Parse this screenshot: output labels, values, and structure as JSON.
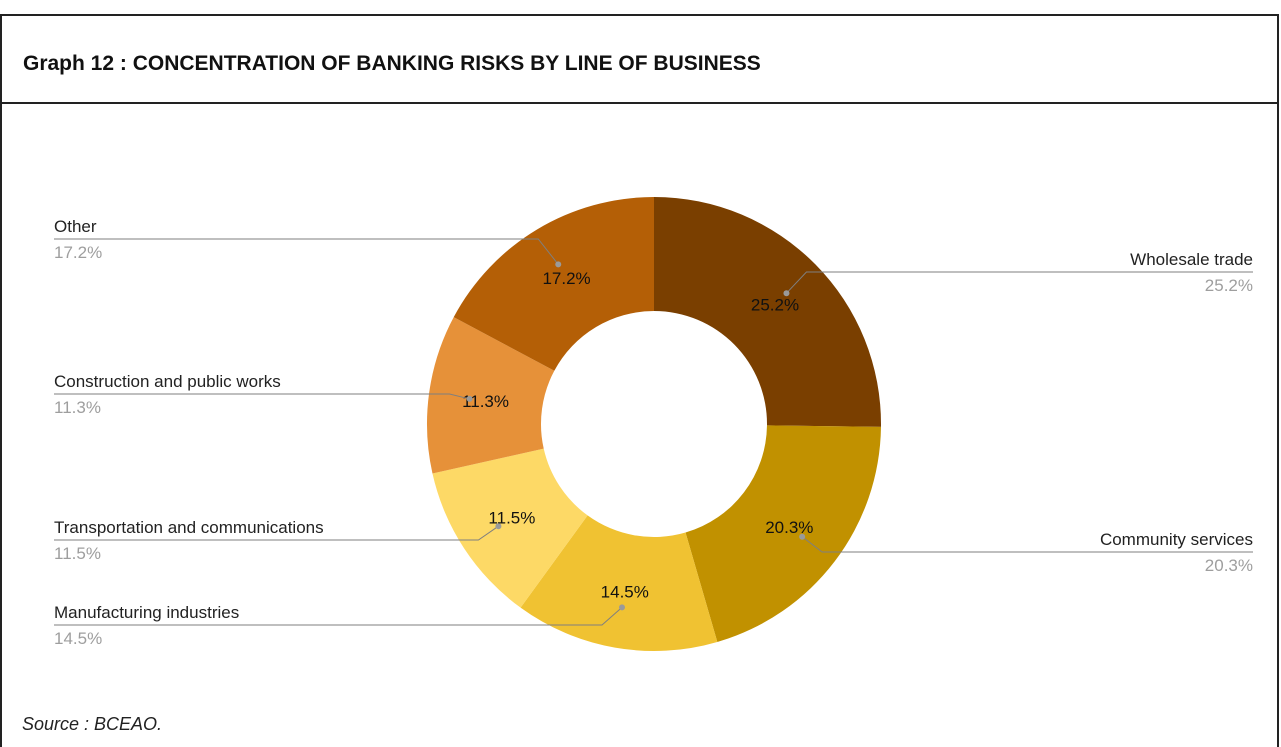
{
  "title": "Graph 12 : CONCENTRATION OF BANKING RISKS BY LINE OF BUSINESS",
  "source": "Source : BCEAO.",
  "chart_data": {
    "type": "pie",
    "donut": true,
    "slices": [
      {
        "label": "Wholesale trade",
        "value": 25.2,
        "pct_label": "25.2%",
        "color": "#7a3f00"
      },
      {
        "label": "Community services",
        "value": 20.3,
        "pct_label": "20.3%",
        "color": "#c19100"
      },
      {
        "label": "Manufacturing industries",
        "value": 14.5,
        "pct_label": "14.5%",
        "color": "#f0c232"
      },
      {
        "label": "Transportation and communications",
        "value": 11.5,
        "pct_label": "11.5%",
        "color": "#fdd966"
      },
      {
        "label": "Construction and public works",
        "value": 11.3,
        "pct_label": "11.3%",
        "color": "#e69139"
      },
      {
        "label": "Other",
        "value": 17.2,
        "pct_label": "17.2%",
        "color": "#b45f06"
      }
    ]
  }
}
